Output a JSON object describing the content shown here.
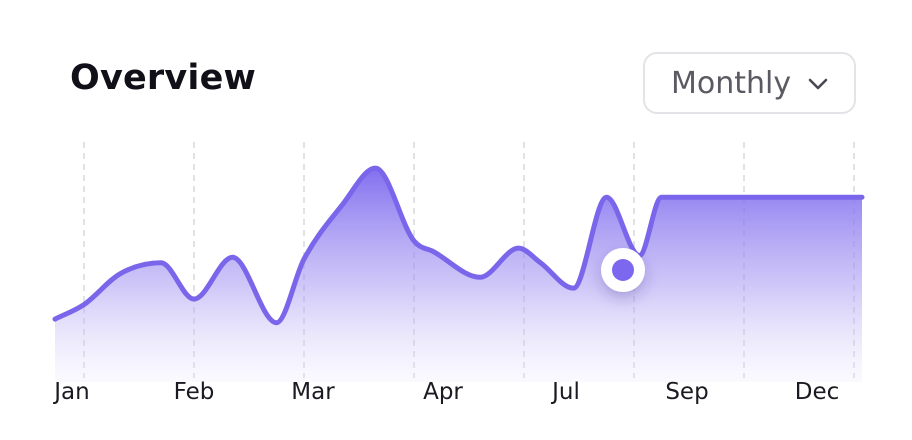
{
  "header": {
    "title": "Overview",
    "period_select": {
      "selected": "Monthly"
    }
  },
  "colors": {
    "accent": "#7b68ee",
    "line": "#7a66ea",
    "grid": "#d8d8dc",
    "text": "#111019"
  },
  "icons": {
    "dropdown": "chevron-down-icon"
  },
  "chart_data": {
    "type": "area",
    "title": "Overview",
    "xlabel": "",
    "ylabel": "",
    "grid": "vertical dashed",
    "x_ticks": [
      "Jan",
      "Feb",
      "Mar",
      "Apr",
      "Jul",
      "Sep",
      "Dec"
    ],
    "x": [
      0,
      0.33,
      0.7,
      1,
      1.35,
      1.75,
      2,
      2.35,
      2.65,
      3,
      3.18,
      3.6,
      3.95,
      4.15,
      4.45,
      4.75,
      5.05,
      5.25,
      5.5,
      5.65,
      5.95,
      6.15,
      6.5,
      7
    ],
    "values": [
      25,
      42,
      48,
      28,
      51,
      15,
      50,
      80,
      100,
      60,
      54,
      40,
      56,
      48,
      34,
      84,
      52,
      84,
      84,
      84,
      84,
      84,
      84,
      84
    ],
    "ylim": [
      0,
      110
    ],
    "highlight_point": {
      "x": 4.9,
      "y": 44
    }
  }
}
